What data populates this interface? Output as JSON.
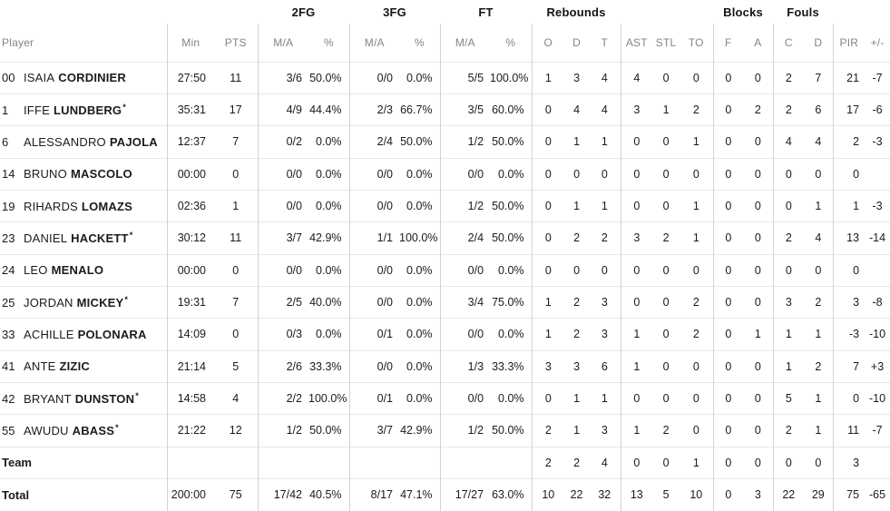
{
  "colors": {
    "text": "#1b1b1b",
    "muted_header": "#848484",
    "divider_vertical": "#d3d3d3",
    "divider_horizontal": "#e7e7e7"
  },
  "table": {
    "group_headers": {
      "fg2": "2FG",
      "fg3": "3FG",
      "ft": "FT",
      "rebounds": "Rebounds",
      "blocks": "Blocks",
      "fouls": "Fouls"
    },
    "col_headers": {
      "player": "Player",
      "min": "Min",
      "pts": "PTS",
      "ma": "M/A",
      "pct": "%",
      "o": "O",
      "d": "D",
      "t": "T",
      "ast": "AST",
      "stl": "STL",
      "to": "TO",
      "f": "F",
      "a": "A",
      "c": "C",
      "pir": "PIR",
      "pm": "+/-"
    },
    "column_keys": [
      "min",
      "pts",
      "fg2ma",
      "fg2pct",
      "fg3ma",
      "fg3pct",
      "ftma",
      "ftpct",
      "o",
      "d",
      "t",
      "ast",
      "stl",
      "to",
      "bf",
      "ba",
      "fc",
      "fd",
      "pir",
      "pm"
    ],
    "rows": [
      {
        "num": "00",
        "first": "ISAIA",
        "last": "CORDINIER",
        "starter": false,
        "cells": {
          "min": "27:50",
          "pts": "11",
          "fg2ma": "3/6",
          "fg2pct": "50.0%",
          "fg3ma": "0/0",
          "fg3pct": "0.0%",
          "ftma": "5/5",
          "ftpct": "100.0%",
          "o": "1",
          "d": "3",
          "t": "4",
          "ast": "4",
          "stl": "0",
          "to": "0",
          "bf": "0",
          "ba": "0",
          "fc": "2",
          "fd": "7",
          "pir": "21",
          "pm": "-7"
        }
      },
      {
        "num": "1",
        "first": "IFFE",
        "last": "LUNDBERG",
        "starter": true,
        "cells": {
          "min": "35:31",
          "pts": "17",
          "fg2ma": "4/9",
          "fg2pct": "44.4%",
          "fg3ma": "2/3",
          "fg3pct": "66.7%",
          "ftma": "3/5",
          "ftpct": "60.0%",
          "o": "0",
          "d": "4",
          "t": "4",
          "ast": "3",
          "stl": "1",
          "to": "2",
          "bf": "0",
          "ba": "2",
          "fc": "2",
          "fd": "6",
          "pir": "17",
          "pm": "-6"
        }
      },
      {
        "num": "6",
        "first": "ALESSANDRO",
        "last": "PAJOLA",
        "starter": false,
        "cells": {
          "min": "12:37",
          "pts": "7",
          "fg2ma": "0/2",
          "fg2pct": "0.0%",
          "fg3ma": "2/4",
          "fg3pct": "50.0%",
          "ftma": "1/2",
          "ftpct": "50.0%",
          "o": "0",
          "d": "1",
          "t": "1",
          "ast": "0",
          "stl": "0",
          "to": "1",
          "bf": "0",
          "ba": "0",
          "fc": "4",
          "fd": "4",
          "pir": "2",
          "pm": "-3"
        }
      },
      {
        "num": "14",
        "first": "BRUNO",
        "last": "MASCOLO",
        "starter": false,
        "cells": {
          "min": "00:00",
          "pts": "0",
          "fg2ma": "0/0",
          "fg2pct": "0.0%",
          "fg3ma": "0/0",
          "fg3pct": "0.0%",
          "ftma": "0/0",
          "ftpct": "0.0%",
          "o": "0",
          "d": "0",
          "t": "0",
          "ast": "0",
          "stl": "0",
          "to": "0",
          "bf": "0",
          "ba": "0",
          "fc": "0",
          "fd": "0",
          "pir": "0",
          "pm": ""
        }
      },
      {
        "num": "19",
        "first": "RIHARDS",
        "last": "LOMAZS",
        "starter": false,
        "cells": {
          "min": "02:36",
          "pts": "1",
          "fg2ma": "0/0",
          "fg2pct": "0.0%",
          "fg3ma": "0/0",
          "fg3pct": "0.0%",
          "ftma": "1/2",
          "ftpct": "50.0%",
          "o": "0",
          "d": "1",
          "t": "1",
          "ast": "0",
          "stl": "0",
          "to": "1",
          "bf": "0",
          "ba": "0",
          "fc": "0",
          "fd": "1",
          "pir": "1",
          "pm": "-3"
        }
      },
      {
        "num": "23",
        "first": "DANIEL",
        "last": "HACKETT",
        "starter": true,
        "cells": {
          "min": "30:12",
          "pts": "11",
          "fg2ma": "3/7",
          "fg2pct": "42.9%",
          "fg3ma": "1/1",
          "fg3pct": "100.0%",
          "ftma": "2/4",
          "ftpct": "50.0%",
          "o": "0",
          "d": "2",
          "t": "2",
          "ast": "3",
          "stl": "2",
          "to": "1",
          "bf": "0",
          "ba": "0",
          "fc": "2",
          "fd": "4",
          "pir": "13",
          "pm": "-14"
        }
      },
      {
        "num": "24",
        "first": "LEO",
        "last": "MENALO",
        "starter": false,
        "cells": {
          "min": "00:00",
          "pts": "0",
          "fg2ma": "0/0",
          "fg2pct": "0.0%",
          "fg3ma": "0/0",
          "fg3pct": "0.0%",
          "ftma": "0/0",
          "ftpct": "0.0%",
          "o": "0",
          "d": "0",
          "t": "0",
          "ast": "0",
          "stl": "0",
          "to": "0",
          "bf": "0",
          "ba": "0",
          "fc": "0",
          "fd": "0",
          "pir": "0",
          "pm": ""
        }
      },
      {
        "num": "25",
        "first": "JORDAN",
        "last": "MICKEY",
        "starter": true,
        "cells": {
          "min": "19:31",
          "pts": "7",
          "fg2ma": "2/5",
          "fg2pct": "40.0%",
          "fg3ma": "0/0",
          "fg3pct": "0.0%",
          "ftma": "3/4",
          "ftpct": "75.0%",
          "o": "1",
          "d": "2",
          "t": "3",
          "ast": "0",
          "stl": "0",
          "to": "2",
          "bf": "0",
          "ba": "0",
          "fc": "3",
          "fd": "2",
          "pir": "3",
          "pm": "-8"
        }
      },
      {
        "num": "33",
        "first": "ACHILLE",
        "last": "POLONARA",
        "starter": false,
        "cells": {
          "min": "14:09",
          "pts": "0",
          "fg2ma": "0/3",
          "fg2pct": "0.0%",
          "fg3ma": "0/1",
          "fg3pct": "0.0%",
          "ftma": "0/0",
          "ftpct": "0.0%",
          "o": "1",
          "d": "2",
          "t": "3",
          "ast": "1",
          "stl": "0",
          "to": "2",
          "bf": "0",
          "ba": "1",
          "fc": "1",
          "fd": "1",
          "pir": "-3",
          "pm": "-10"
        }
      },
      {
        "num": "41",
        "first": "ANTE",
        "last": "ZIZIC",
        "starter": false,
        "cells": {
          "min": "21:14",
          "pts": "5",
          "fg2ma": "2/6",
          "fg2pct": "33.3%",
          "fg3ma": "0/0",
          "fg3pct": "0.0%",
          "ftma": "1/3",
          "ftpct": "33.3%",
          "o": "3",
          "d": "3",
          "t": "6",
          "ast": "1",
          "stl": "0",
          "to": "0",
          "bf": "0",
          "ba": "0",
          "fc": "1",
          "fd": "2",
          "pir": "7",
          "pm": "+3"
        }
      },
      {
        "num": "42",
        "first": "BRYANT",
        "last": "DUNSTON",
        "starter": true,
        "cells": {
          "min": "14:58",
          "pts": "4",
          "fg2ma": "2/2",
          "fg2pct": "100.0%",
          "fg3ma": "0/1",
          "fg3pct": "0.0%",
          "ftma": "0/0",
          "ftpct": "0.0%",
          "o": "0",
          "d": "1",
          "t": "1",
          "ast": "0",
          "stl": "0",
          "to": "0",
          "bf": "0",
          "ba": "0",
          "fc": "5",
          "fd": "1",
          "pir": "0",
          "pm": "-10"
        }
      },
      {
        "num": "55",
        "first": "AWUDU",
        "last": "ABASS",
        "starter": true,
        "cells": {
          "min": "21:22",
          "pts": "12",
          "fg2ma": "1/2",
          "fg2pct": "50.0%",
          "fg3ma": "3/7",
          "fg3pct": "42.9%",
          "ftma": "1/2",
          "ftpct": "50.0%",
          "o": "2",
          "d": "1",
          "t": "3",
          "ast": "1",
          "stl": "2",
          "to": "0",
          "bf": "0",
          "ba": "0",
          "fc": "2",
          "fd": "1",
          "pir": "11",
          "pm": "-7"
        }
      },
      {
        "label": "Team",
        "cells": {
          "min": "",
          "pts": "",
          "fg2ma": "",
          "fg2pct": "",
          "fg3ma": "",
          "fg3pct": "",
          "ftma": "",
          "ftpct": "",
          "o": "2",
          "d": "2",
          "t": "4",
          "ast": "0",
          "stl": "0",
          "to": "1",
          "bf": "0",
          "ba": "0",
          "fc": "0",
          "fd": "0",
          "pir": "3",
          "pm": ""
        }
      },
      {
        "label": "Total",
        "cells": {
          "min": "200:00",
          "pts": "75",
          "fg2ma": "17/42",
          "fg2pct": "40.5%",
          "fg3ma": "8/17",
          "fg3pct": "47.1%",
          "ftma": "17/27",
          "ftpct": "63.0%",
          "o": "10",
          "d": "22",
          "t": "32",
          "ast": "13",
          "stl": "5",
          "to": "10",
          "bf": "0",
          "ba": "3",
          "fc": "22",
          "fd": "29",
          "pir": "75",
          "pm": "-65"
        }
      }
    ]
  }
}
